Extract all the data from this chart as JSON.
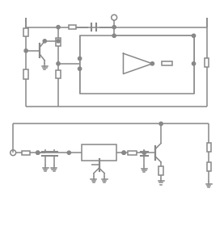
{
  "bg_color": "#ffffff",
  "line_color": "#888888",
  "lw": 1.1,
  "fig_w": 2.77,
  "fig_h": 2.8,
  "dpi": 100
}
